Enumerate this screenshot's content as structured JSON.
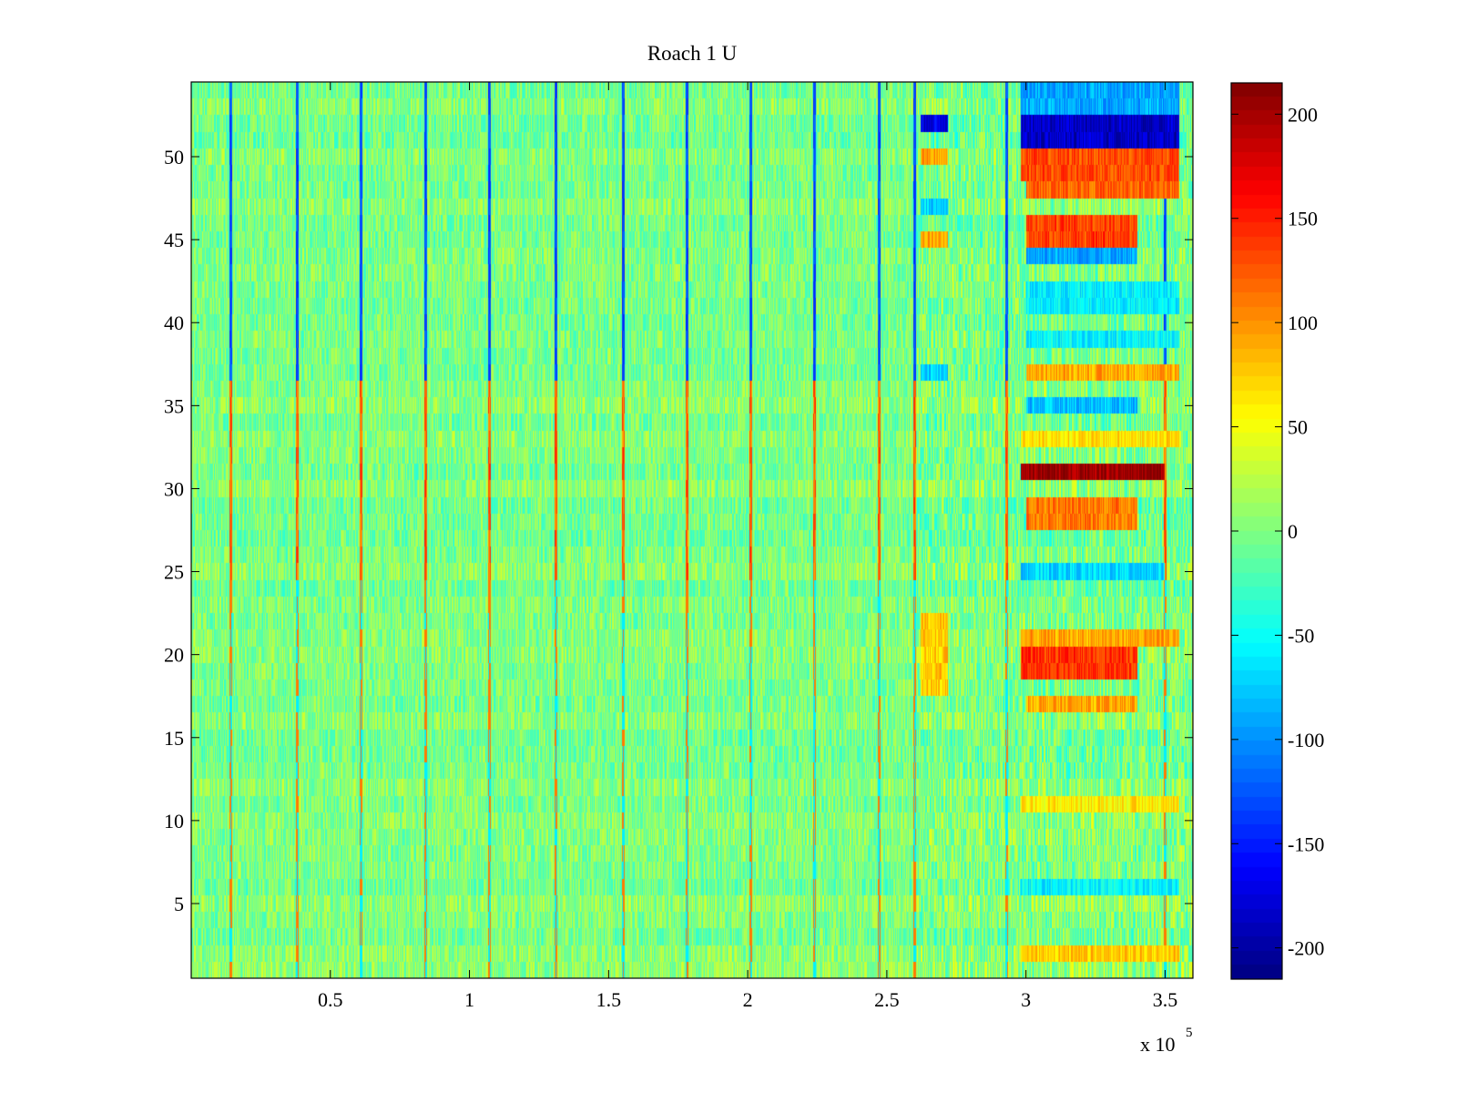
{
  "chart_data": {
    "type": "heatmap",
    "title": "Roach 1 U",
    "xlabel": "",
    "ylabel": "",
    "x_multiplier": {
      "base": "x 10",
      "exponent": "5"
    },
    "xlim": [
      0,
      3.6
    ],
    "ylim": [
      0.5,
      54.5
    ],
    "x_ticks": [
      {
        "value": 0.5,
        "label": "0.5"
      },
      {
        "value": 1,
        "label": "1"
      },
      {
        "value": 1.5,
        "label": "1.5"
      },
      {
        "value": 2,
        "label": "2"
      },
      {
        "value": 2.5,
        "label": "2.5"
      },
      {
        "value": 3,
        "label": "3"
      },
      {
        "value": 3.5,
        "label": "3.5"
      }
    ],
    "y_ticks": [
      {
        "value": 5,
        "label": "5"
      },
      {
        "value": 10,
        "label": "10"
      },
      {
        "value": 15,
        "label": "15"
      },
      {
        "value": 20,
        "label": "20"
      },
      {
        "value": 25,
        "label": "25"
      },
      {
        "value": 30,
        "label": "30"
      },
      {
        "value": 35,
        "label": "35"
      },
      {
        "value": 40,
        "label": "40"
      },
      {
        "value": 45,
        "label": "45"
      },
      {
        "value": 50,
        "label": "50"
      }
    ],
    "rows": 54,
    "colormap": "jet",
    "clim": [
      -215,
      215
    ],
    "colorbar": {
      "placement": "right",
      "ticks": [
        {
          "value": 200,
          "label": "200"
        },
        {
          "value": 150,
          "label": "150"
        },
        {
          "value": 100,
          "label": "100"
        },
        {
          "value": 50,
          "label": "50"
        },
        {
          "value": 0,
          "label": "0"
        },
        {
          "value": -50,
          "label": "-50"
        },
        {
          "value": -100,
          "label": "-100"
        },
        {
          "value": -150,
          "label": "-150"
        },
        {
          "value": -200,
          "label": "-200"
        }
      ]
    },
    "background_range": [
      -40,
      40
    ],
    "spike_columns_x": [
      0.14,
      0.38,
      0.61,
      0.84,
      1.07,
      1.31,
      1.55,
      1.78,
      2.01,
      2.24,
      2.47,
      2.6,
      2.93,
      3.5
    ],
    "segments": [
      {
        "x0": 2.62,
        "x1": 2.72,
        "rows": [
          52
        ],
        "value": -170
      },
      {
        "x0": 2.62,
        "x1": 2.72,
        "rows": [
          50,
          45
        ],
        "value": 90
      },
      {
        "x0": 2.62,
        "x1": 2.72,
        "rows": [
          47,
          37
        ],
        "value": -70
      },
      {
        "x0": 2.62,
        "x1": 2.72,
        "rows": [
          22,
          21,
          20,
          19,
          18
        ],
        "value": 75
      },
      {
        "x0": 2.98,
        "x1": 3.55,
        "rows": [
          54,
          53
        ],
        "value": -90
      },
      {
        "x0": 2.98,
        "x1": 3.55,
        "rows": [
          52,
          51
        ],
        "value": -185
      },
      {
        "x0": 2.98,
        "x1": 3.55,
        "rows": [
          50,
          49
        ],
        "value": 130
      },
      {
        "x0": 3.0,
        "x1": 3.55,
        "rows": [
          48
        ],
        "value": 120
      },
      {
        "x0": 3.0,
        "x1": 3.4,
        "rows": [
          46,
          45
        ],
        "value": 135
      },
      {
        "x0": 3.0,
        "x1": 3.4,
        "rows": [
          44
        ],
        "value": -90
      },
      {
        "x0": 3.0,
        "x1": 3.55,
        "rows": [
          42,
          41
        ],
        "value": -60
      },
      {
        "x0": 3.0,
        "x1": 3.55,
        "rows": [
          39
        ],
        "value": -55
      },
      {
        "x0": 3.0,
        "x1": 3.55,
        "rows": [
          37
        ],
        "value": 90
      },
      {
        "x0": 3.0,
        "x1": 3.4,
        "rows": [
          35
        ],
        "value": -80
      },
      {
        "x0": 2.98,
        "x1": 3.55,
        "rows": [
          33
        ],
        "value": 65
      },
      {
        "x0": 2.98,
        "x1": 3.5,
        "rows": [
          31
        ],
        "value": 205
      },
      {
        "x0": 3.0,
        "x1": 3.4,
        "rows": [
          29,
          28
        ],
        "value": 110
      },
      {
        "x0": 2.98,
        "x1": 3.5,
        "rows": [
          25
        ],
        "value": -70
      },
      {
        "x0": 2.98,
        "x1": 3.55,
        "rows": [
          21
        ],
        "value": 90
      },
      {
        "x0": 2.98,
        "x1": 3.4,
        "rows": [
          20,
          19
        ],
        "value": 140
      },
      {
        "x0": 3.0,
        "x1": 3.4,
        "rows": [
          17
        ],
        "value": 90
      },
      {
        "x0": 2.98,
        "x1": 3.55,
        "rows": [
          11
        ],
        "value": 60
      },
      {
        "x0": 2.98,
        "x1": 3.55,
        "rows": [
          6
        ],
        "value": -55
      },
      {
        "x0": 2.98,
        "x1": 3.55,
        "rows": [
          2
        ],
        "value": 75
      }
    ]
  }
}
